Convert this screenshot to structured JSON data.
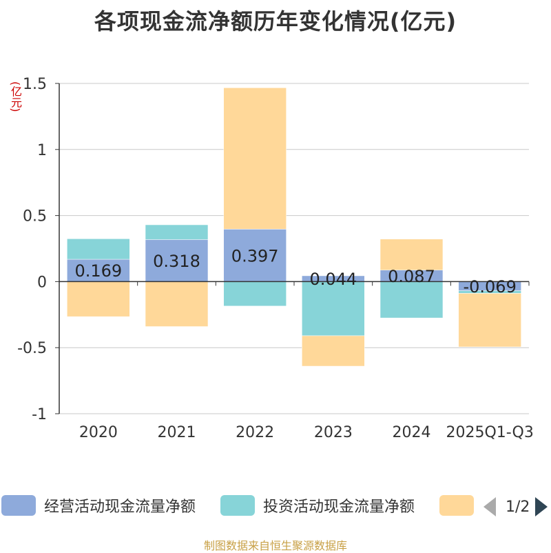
{
  "colors": {
    "operating": "#8eaadb",
    "investing": "#87d4d8",
    "financing": "#ffd899",
    "axis": "#333333",
    "grid": "#c8c8c8",
    "unit": "#cc0000",
    "source": "#c8a046"
  },
  "chart_data": {
    "type": "bar",
    "stacked": true,
    "title": "各项现金流净额历年变化情况(亿元)",
    "ylabel": "(亿元)",
    "xlabel": "",
    "ylim": [
      -1,
      1.5
    ],
    "yticks": [
      1.5,
      1,
      0.5,
      0,
      -0.5,
      -1
    ],
    "ytick_labels": [
      "1.5",
      "1",
      "0.5",
      "0",
      "-0.5",
      "-1"
    ],
    "grid": true,
    "categories": [
      "2020",
      "2021",
      "2022",
      "2023",
      "2024",
      "2025Q1-Q3"
    ],
    "series": [
      {
        "name": "经营活动现金流量净额",
        "values": [
          0.169,
          0.318,
          0.397,
          0.044,
          0.087,
          -0.069
        ],
        "labels": [
          "0.169",
          "0.318",
          "0.397",
          "0.044",
          "0.087",
          "-0.069"
        ]
      },
      {
        "name": "投资活动现金流量净额",
        "values": [
          0.155,
          0.112,
          -0.185,
          -0.41,
          -0.275,
          -0.02
        ]
      },
      {
        "name": "",
        "values": [
          -0.265,
          -0.34,
          1.07,
          -0.23,
          0.235,
          -0.405
        ]
      }
    ],
    "legend_position": "bottom"
  },
  "legend": {
    "items": [
      {
        "label": "经营活动现金流量净额"
      },
      {
        "label": "投资活动现金流量净额"
      },
      {
        "label": ""
      }
    ],
    "pager": "1/2"
  },
  "source": "制图数据来自恒生聚源数据库"
}
